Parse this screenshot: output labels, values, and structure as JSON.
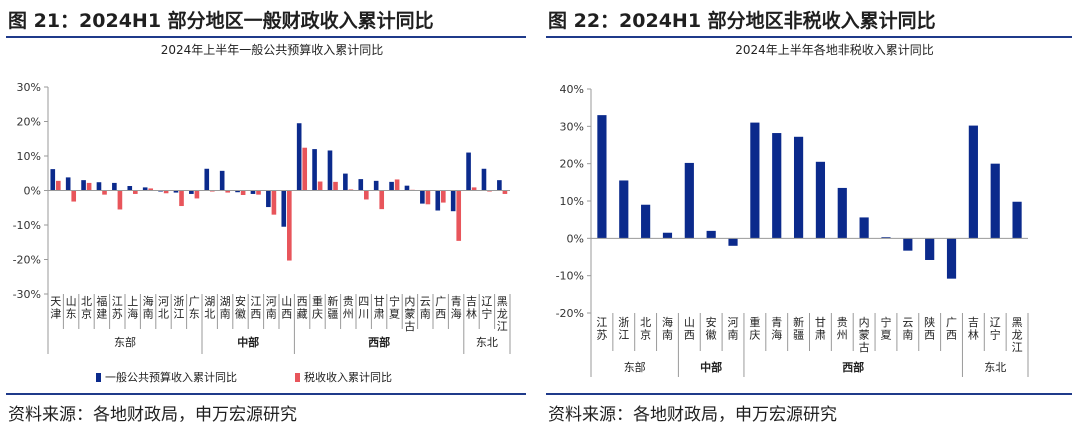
{
  "left": {
    "figure_title": "图 21：2024H1 部分地区一般财政收入累计同比",
    "source": "资料来源：各地财政局，申万宏源研究",
    "chart_data": {
      "type": "bar",
      "title": "2024年上半年一般公共预算收入累计同比",
      "ylim": [
        -30,
        30
      ],
      "yticks": [
        "30%",
        "20%",
        "10%",
        "0%",
        "-10%",
        "-20%",
        "-30%"
      ],
      "ytick_values": [
        30,
        20,
        10,
        0,
        -10,
        -20,
        -30
      ],
      "categories": [
        "天津",
        "山东",
        "北京",
        "福建",
        "江苏",
        "上海",
        "海南",
        "河北",
        "浙江",
        "广东",
        "湖北",
        "湖南",
        "安徽",
        "江西",
        "河南",
        "山西",
        "西藏",
        "重庆",
        "新疆",
        "贵州",
        "四川",
        "甘肃",
        "宁夏",
        "内蒙古",
        "云南",
        "广西",
        "青海",
        "吉林",
        "辽宁",
        "黑龙江"
      ],
      "category_labels": [
        [
          "天",
          "津"
        ],
        [
          "山",
          "东"
        ],
        [
          "北",
          "京"
        ],
        [
          "福",
          "建"
        ],
        [
          "江",
          "苏"
        ],
        [
          "上",
          "海"
        ],
        [
          "海",
          "南"
        ],
        [
          "河",
          "北"
        ],
        [
          "浙",
          "江"
        ],
        [
          "广",
          "东"
        ],
        [
          "湖",
          "北"
        ],
        [
          "湖",
          "南"
        ],
        [
          "安",
          "徽"
        ],
        [
          "江",
          "西"
        ],
        [
          "河",
          "南"
        ],
        [
          "山",
          "西"
        ],
        [
          "西",
          "藏"
        ],
        [
          "重",
          "庆"
        ],
        [
          "新",
          "疆"
        ],
        [
          "贵",
          "州"
        ],
        [
          "四",
          "川"
        ],
        [
          "甘",
          "肃"
        ],
        [
          "宁",
          "夏"
        ],
        [
          "内",
          "蒙",
          "古"
        ],
        [
          "云",
          "南"
        ],
        [
          "广",
          "西"
        ],
        [
          "青",
          "海"
        ],
        [
          "吉",
          "林"
        ],
        [
          "辽",
          "宁"
        ],
        [
          "黑",
          "龙",
          "江"
        ]
      ],
      "series": [
        {
          "name": "一般公共预算收入累计同比",
          "color": "#0b2a8c",
          "values": [
            6.2,
            3.8,
            3.0,
            2.4,
            2.2,
            1.3,
            0.9,
            -0.3,
            -0.6,
            -1.0,
            6.3,
            5.7,
            -0.5,
            -1.0,
            -4.8,
            -10.5,
            19.5,
            12.0,
            11.6,
            4.9,
            3.3,
            2.8,
            2.5,
            1.4,
            -3.8,
            -5.8,
            -6.0,
            11.0,
            6.3,
            3.0
          ]
        },
        {
          "name": "税收收入累计同比",
          "color": "#e8555b",
          "values": [
            2.8,
            -3.2,
            2.2,
            -1.2,
            -5.5,
            -1.0,
            0.6,
            -0.8,
            -4.5,
            -2.3,
            -0.3,
            -0.6,
            -1.3,
            -1.2,
            -7.0,
            -20.3,
            12.4,
            2.6,
            2.5,
            0.3,
            -2.6,
            -5.4,
            3.2,
            0.2,
            -4.0,
            -3.5,
            -14.6,
            0.9,
            -0.3,
            -1.0
          ]
        }
      ],
      "regions": [
        {
          "name": "东部",
          "start": 0,
          "end": 9
        },
        {
          "name": "中部",
          "start": 10,
          "end": 15
        },
        {
          "name": "西部",
          "start": 16,
          "end": 26
        },
        {
          "name": "东北",
          "start": 27,
          "end": 29
        }
      ],
      "legend": "bottom"
    }
  },
  "right": {
    "figure_title": "图 22：2024H1 部分地区非税收入累计同比",
    "source": "资料来源：各地财政局，申万宏源研究",
    "chart_data": {
      "type": "bar",
      "title": "2024年上半年各地非税收入累计同比",
      "ylim": [
        -20,
        40
      ],
      "yticks": [
        "40%",
        "30%",
        "20%",
        "10%",
        "0%",
        "-10%",
        "-20%"
      ],
      "ytick_values": [
        40,
        30,
        20,
        10,
        0,
        -10,
        -20
      ],
      "categories": [
        "江苏",
        "浙江",
        "北京",
        "海南",
        "山西",
        "安徽",
        "河南",
        "重庆",
        "青海",
        "新疆",
        "甘肃",
        "贵州",
        "内蒙古",
        "宁夏",
        "云南",
        "陕西",
        "广西",
        "吉林",
        "辽宁",
        "黑龙江"
      ],
      "category_labels": [
        [
          "江",
          "苏"
        ],
        [
          "浙",
          "江"
        ],
        [
          "北",
          "京"
        ],
        [
          "海",
          "南"
        ],
        [
          "山",
          "西"
        ],
        [
          "安",
          "徽"
        ],
        [
          "河",
          "南"
        ],
        [
          "重",
          "庆"
        ],
        [
          "青",
          "海"
        ],
        [
          "新",
          "疆"
        ],
        [
          "甘",
          "肃"
        ],
        [
          "贵",
          "州"
        ],
        [
          "内",
          "蒙",
          "古"
        ],
        [
          "宁",
          "夏"
        ],
        [
          "云",
          "南"
        ],
        [
          "陕",
          "西"
        ],
        [
          "广",
          "西"
        ],
        [
          "吉",
          "林"
        ],
        [
          "辽",
          "宁"
        ],
        [
          "黑",
          "龙",
          "江"
        ]
      ],
      "series": [
        {
          "name": "非税收入累计同比",
          "color": "#0b2a8c",
          "values": [
            33.0,
            15.5,
            9.0,
            1.5,
            20.2,
            2.0,
            -2.0,
            31.0,
            28.2,
            27.2,
            20.5,
            13.5,
            5.6,
            0.3,
            -3.3,
            -5.8,
            -10.8,
            30.2,
            20.0,
            9.8
          ]
        }
      ],
      "regions": [
        {
          "name": "东部",
          "start": 0,
          "end": 3
        },
        {
          "name": "中部",
          "start": 4,
          "end": 6
        },
        {
          "name": "西部",
          "start": 7,
          "end": 16
        },
        {
          "name": "东北",
          "start": 17,
          "end": 19
        }
      ]
    }
  }
}
